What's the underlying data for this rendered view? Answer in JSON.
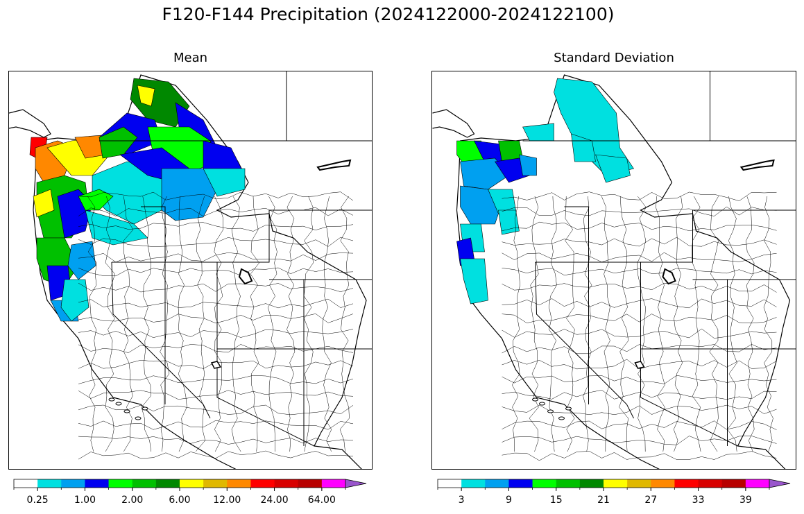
{
  "figure": {
    "title": "F120-F144 Precipitation (2024122000-2024122100)"
  },
  "panels": [
    {
      "title": "Mean",
      "colorbar": {
        "colors": [
          "#ffffff",
          "#00e0e0",
          "#00a0f0",
          "#0000f0",
          "#00ff00",
          "#00c000",
          "#008800",
          "#ffff00",
          "#e0b800",
          "#ff8800",
          "#ff0000",
          "#d80000",
          "#b80000",
          "#ff00ff",
          "#9955cc"
        ],
        "tick_labels": [
          "0.25",
          "1.00",
          "2.00",
          "6.00",
          "12.00",
          "24.00",
          "64.00"
        ],
        "extend": "max"
      },
      "legend_caption": "Basin-averaged precipitation mean; heaviest (red/orange) along the Washington-Oregon coast, green/blue over northern Idaho and Montana, light cyan across southern Idaho, no precipitation across the Great Basin, California and the Southwest."
    },
    {
      "title": "Standard Deviation",
      "colorbar": {
        "colors": [
          "#ffffff",
          "#00e0e0",
          "#00a0f0",
          "#0000f0",
          "#00ff00",
          "#00c000",
          "#008800",
          "#ffff00",
          "#e0b800",
          "#ff8800",
          "#ff0000",
          "#d80000",
          "#b80000",
          "#ff00ff",
          "#9955cc"
        ],
        "tick_labels": [
          "3",
          "9",
          "15",
          "21",
          "27",
          "33",
          "39"
        ],
        "extend": "max"
      },
      "legend_caption": "Basin-level standard deviation; highest (green/blue) over western Washington and the Oregon coast, cyan over northern Idaho and Montana, near zero elsewhere."
    }
  ]
}
